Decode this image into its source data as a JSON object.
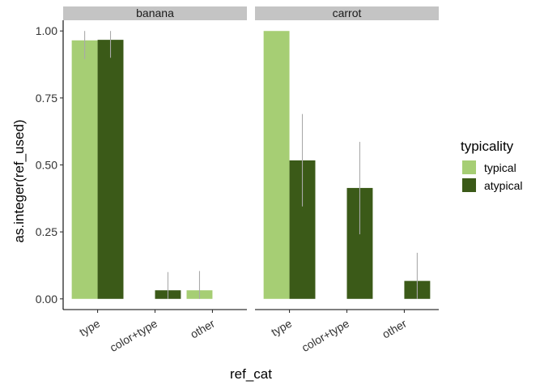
{
  "chart_data": {
    "type": "bar",
    "xlabel": "ref_cat",
    "ylabel": "as.integer(ref_used)",
    "ylim": [
      -0.04,
      1.04
    ],
    "yticks": [
      "0.00",
      "0.25",
      "0.50",
      "0.75",
      "1.00"
    ],
    "ytick_values": [
      0,
      0.25,
      0.5,
      0.75,
      1.0
    ],
    "categories": [
      "type",
      "color+type",
      "other"
    ],
    "legend": {
      "title": "typicality",
      "position": "right",
      "entries": [
        {
          "name": "typical",
          "color": "#a6ce74"
        },
        {
          "name": "atypical",
          "color": "#3b5a18"
        }
      ]
    },
    "error_bar_color": "#a9a9a9",
    "strip_color": "#c4c4c4",
    "panels": [
      {
        "facet": "banana",
        "series": [
          {
            "name": "typical",
            "values": [
              0.965,
              null,
              0.032
            ],
            "err_low": [
              0.895,
              null,
              0.0
            ],
            "err_high": [
              1.0,
              null,
              0.104
            ]
          },
          {
            "name": "atypical",
            "values": [
              0.967,
              0.032,
              null
            ],
            "err_low": [
              0.9,
              0.0,
              null
            ],
            "err_high": [
              1.0,
              0.1,
              null
            ]
          }
        ]
      },
      {
        "facet": "carrot",
        "series": [
          {
            "name": "typical",
            "values": [
              1.0,
              null,
              null
            ],
            "err_low": [
              1.0,
              null,
              null
            ],
            "err_high": [
              1.0,
              null,
              null
            ]
          },
          {
            "name": "atypical",
            "values": [
              0.517,
              0.414,
              0.067
            ],
            "err_low": [
              0.345,
              0.241,
              0.0
            ],
            "err_high": [
              0.69,
              0.586,
              0.172
            ]
          }
        ]
      }
    ]
  }
}
